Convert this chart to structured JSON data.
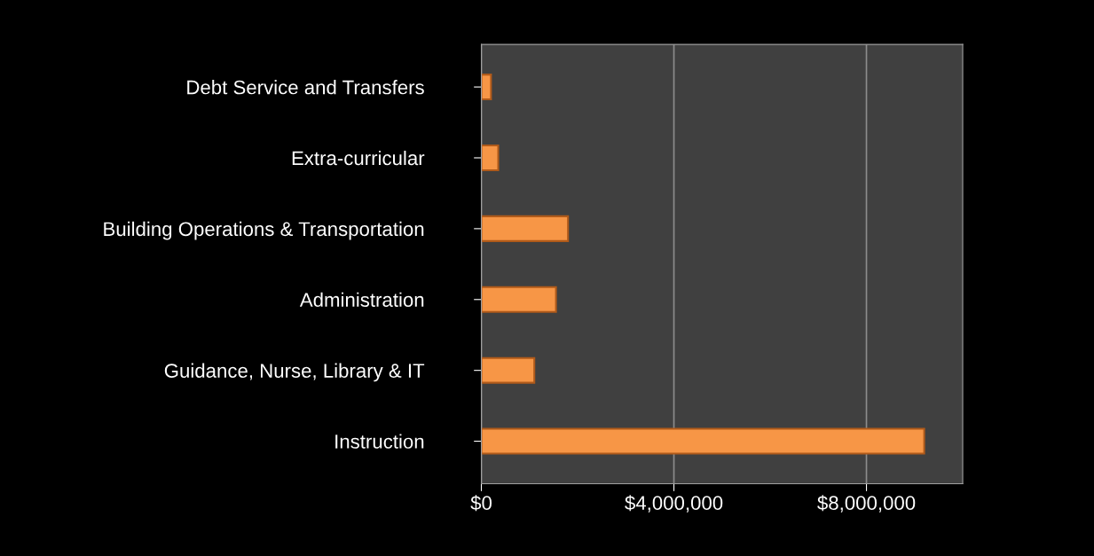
{
  "chart_data": {
    "type": "bar",
    "orientation": "horizontal",
    "categories": [
      "Debt Service and Transfers",
      "Extra-curricular",
      "Building Operations & Transportation",
      "Administration",
      "Guidance, Nurse, Library & IT",
      "Instruction"
    ],
    "values": [
      200000,
      350000,
      1800000,
      1550000,
      1100000,
      9200000
    ],
    "color": "#f79646",
    "xlim": [
      0,
      10000000
    ],
    "xticks": [
      {
        "value": 0,
        "label": "$0"
      },
      {
        "value": 4000000,
        "label": "$4,000,000"
      },
      {
        "value": 8000000,
        "label": "$8,000,000"
      }
    ],
    "grid": "x"
  }
}
